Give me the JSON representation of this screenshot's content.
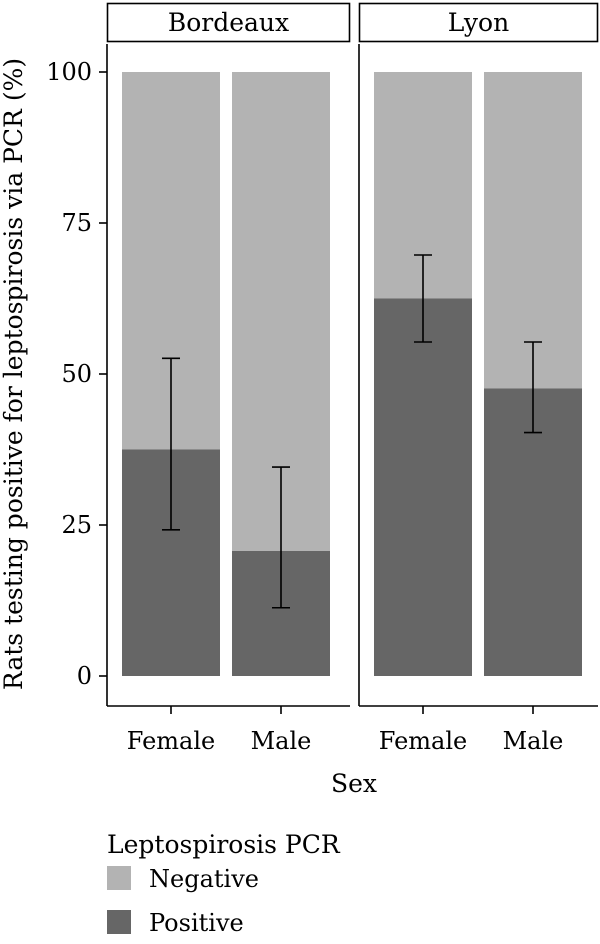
{
  "chart_data": {
    "type": "bar",
    "stacked": true,
    "facets": [
      "Bordeaux",
      "Lyon"
    ],
    "categories": [
      "Female",
      "Male"
    ],
    "series": [
      {
        "name": "Negative",
        "color": "#b3b3b3",
        "values": {
          "Bordeaux": [
            62.5,
            79.3
          ],
          "Lyon": [
            37.5,
            52.4
          ]
        }
      },
      {
        "name": "Positive",
        "color": "#666666",
        "values": {
          "Bordeaux": [
            37.5,
            20.7
          ],
          "Lyon": [
            62.5,
            47.6
          ]
        }
      }
    ],
    "error_bars": {
      "series": "Positive",
      "Bordeaux": [
        {
          "low": 24.2,
          "high": 52.6
        },
        {
          "low": 11.3,
          "high": 34.6
        }
      ],
      "Lyon": [
        {
          "low": 55.3,
          "high": 69.7
        },
        {
          "low": 40.3,
          "high": 55.3
        }
      ]
    },
    "xlabel": "Sex",
    "ylabel": "Rats testing positive for leptospirosis via PCR (%)",
    "ylim": [
      0,
      100
    ],
    "yticks": [
      0,
      25,
      50,
      75,
      100
    ],
    "grid": false,
    "legend": {
      "title": "Leptospirosis PCR",
      "position": "bottom-left",
      "entries": [
        "Negative",
        "Positive"
      ]
    }
  }
}
